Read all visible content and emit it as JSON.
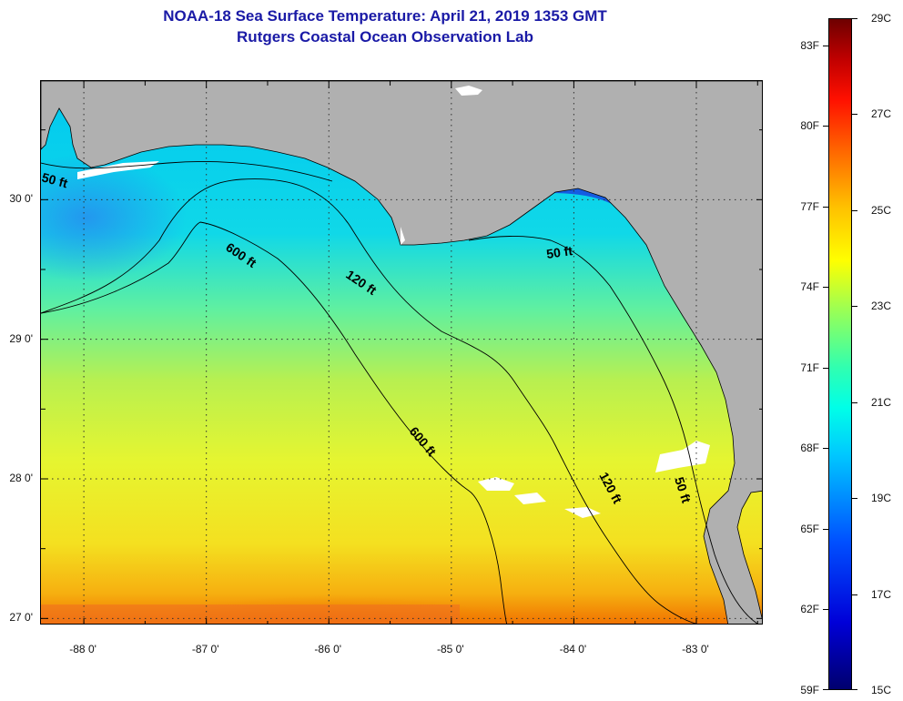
{
  "header": {
    "title": "NOAA-18 Sea Surface Temperature:  April 21, 2019 1353 GMT",
    "subtitle": "Rutgers Coastal Ocean Observation Lab"
  },
  "map": {
    "lon_range": [
      -88.35,
      -82.45
    ],
    "lat_range": [
      26.95,
      30.85
    ],
    "lat_ticks": [
      {
        "value": 30,
        "label": "30 0'"
      },
      {
        "value": 29,
        "label": "29 0'"
      },
      {
        "value": 28,
        "label": "28 0'"
      },
      {
        "value": 27,
        "label": "27 0'"
      }
    ],
    "lon_ticks": [
      {
        "value": -88,
        "label": "-88 0'"
      },
      {
        "value": -87,
        "label": "-87 0'"
      },
      {
        "value": -86,
        "label": "-86 0'"
      },
      {
        "value": -85,
        "label": "-85 0'"
      },
      {
        "value": -84,
        "label": "-84 0'"
      },
      {
        "value": -83,
        "label": "-83 0'"
      }
    ],
    "grid": "dotted",
    "colors": {
      "land": "#b0b0b0",
      "cloud": "#ffffff",
      "contour": "#000000"
    },
    "contour_labels": [
      "50 ft",
      "600 ft",
      "120 ft",
      "50 ft",
      "600 ft",
      "120 ft",
      "50 ft"
    ]
  },
  "colorbar": {
    "range_f": [
      59,
      84
    ],
    "range_c": [
      15,
      29
    ],
    "fahrenheit_labels": [
      "83F",
      "80F",
      "77F",
      "74F",
      "71F",
      "68F",
      "65F",
      "62F",
      "59F"
    ],
    "celsius_labels": [
      "29C",
      "27C",
      "25C",
      "23C",
      "21C",
      "19C",
      "17C",
      "15C"
    ]
  }
}
